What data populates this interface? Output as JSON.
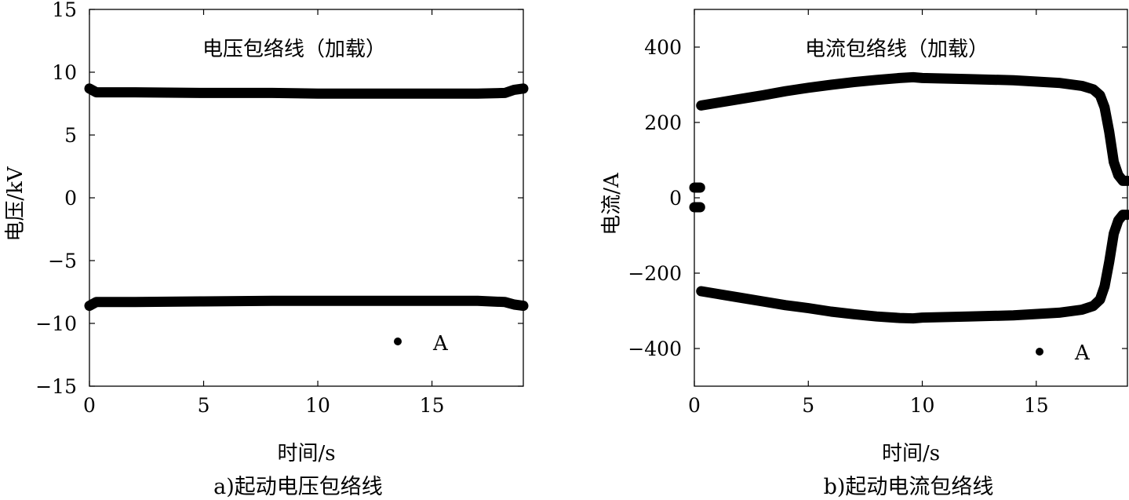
{
  "chart_data": [
    {
      "panel": "a",
      "type": "line",
      "title": "电压包络线（加载）",
      "caption": "a)起动电压包络线",
      "xlabel": "时间/s",
      "ylabel": "电压/kV",
      "xlim": [
        0,
        19
      ],
      "ylim": [
        -15,
        15
      ],
      "xticks": [
        0,
        5,
        10,
        15
      ],
      "yticks": [
        -15,
        -10,
        -5,
        0,
        5,
        10,
        15
      ],
      "xtick_labels": [
        "0",
        "5",
        "10",
        "15"
      ],
      "ytick_labels": [
        "−15",
        "−10",
        "−5",
        "0",
        "5",
        "10",
        "15"
      ],
      "grid": false,
      "legend_position": "bottom-right",
      "legend": [
        {
          "label": "A",
          "marker": "dot"
        }
      ],
      "series": [
        {
          "legend": "A",
          "x": [
            0,
            0.3,
            2,
            5,
            8,
            10,
            12,
            15,
            17,
            18.2,
            18.6,
            19
          ],
          "y": [
            8.7,
            8.4,
            8.4,
            8.35,
            8.35,
            8.3,
            8.3,
            8.3,
            8.3,
            8.35,
            8.6,
            8.7
          ]
        },
        {
          "legend": "A",
          "x": [
            0,
            0.3,
            2,
            5,
            8,
            10,
            12,
            15,
            17,
            18.2,
            18.6,
            19
          ],
          "y": [
            -8.6,
            -8.3,
            -8.3,
            -8.25,
            -8.2,
            -8.2,
            -8.2,
            -8.2,
            -8.2,
            -8.3,
            -8.5,
            -8.6
          ]
        }
      ]
    },
    {
      "panel": "b",
      "type": "line",
      "title": "电流包络线（加载）",
      "caption": "b)起动电流包络线",
      "xlabel": "时间/s",
      "ylabel": "电流/A",
      "xlim": [
        0,
        19
      ],
      "ylim": [
        -500,
        500
      ],
      "xticks": [
        0,
        5,
        10,
        15
      ],
      "yticks": [
        -400,
        -200,
        0,
        200,
        400
      ],
      "xtick_labels": [
        "0",
        "5",
        "10",
        "15"
      ],
      "ytick_labels": [
        "−400",
        "−200",
        "0",
        "200",
        "400"
      ],
      "grid": false,
      "legend_position": "bottom-right",
      "legend": [
        {
          "label": "A",
          "marker": "dot"
        }
      ],
      "series": [
        {
          "legend": "A",
          "x": [
            0,
            0.25
          ],
          "y": [
            27,
            27
          ]
        },
        {
          "legend": "A",
          "x": [
            0,
            0.25
          ],
          "y": [
            -25,
            -25
          ]
        },
        {
          "legend": "A",
          "x": [
            0.3,
            1,
            2,
            3,
            4,
            5,
            6,
            7,
            8,
            9,
            9.6,
            10,
            12,
            14,
            16,
            17,
            17.5,
            17.8,
            18,
            18.2,
            18.4,
            18.6,
            18.8,
            19
          ],
          "y": [
            245,
            252,
            262,
            272,
            283,
            292,
            300,
            307,
            313,
            318,
            320,
            318,
            315,
            312,
            305,
            297,
            288,
            272,
            240,
            175,
            95,
            60,
            45,
            45
          ]
        },
        {
          "legend": "A",
          "x": [
            0.3,
            1,
            2,
            3,
            4,
            5,
            6,
            7,
            8,
            9,
            9.6,
            10,
            12,
            14,
            16,
            17,
            17.5,
            17.8,
            18,
            18.2,
            18.4,
            18.6,
            18.8,
            19
          ],
          "y": [
            -248,
            -255,
            -265,
            -275,
            -285,
            -293,
            -302,
            -309,
            -315,
            -319,
            -320,
            -318,
            -315,
            -312,
            -305,
            -297,
            -287,
            -270,
            -235,
            -170,
            -95,
            -60,
            -45,
            -45
          ]
        }
      ]
    }
  ]
}
